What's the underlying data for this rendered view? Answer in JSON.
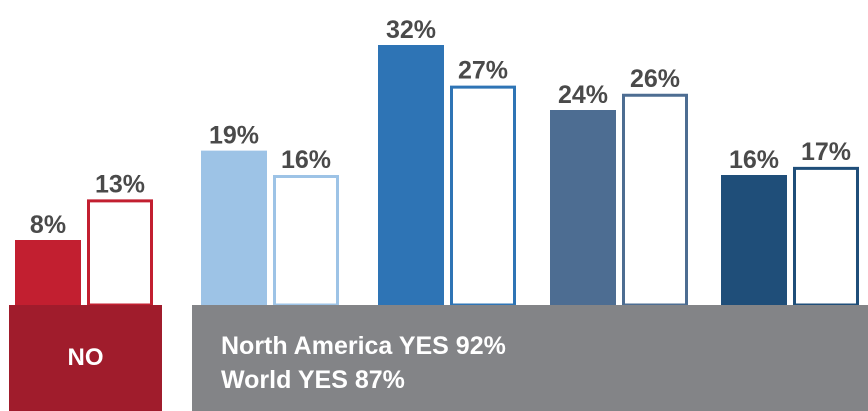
{
  "chart_data": {
    "type": "bar",
    "ylim": [
      0,
      35
    ],
    "groups": [
      {
        "label": "NO",
        "region": "no",
        "filled": 8,
        "outline": 13,
        "color": "#c21f30"
      },
      {
        "region": "yes",
        "filled": 19,
        "outline": 16,
        "color": "#9dc3e6"
      },
      {
        "region": "yes",
        "filled": 32,
        "outline": 27,
        "color": "#2e74b5"
      },
      {
        "region": "yes",
        "filled": 24,
        "outline": 26,
        "color": "#4d6d92"
      },
      {
        "region": "yes",
        "filled": 16,
        "outline": 17,
        "color": "#1f4e79"
      }
    ],
    "value_labels": {
      "no_filled": "8%",
      "no_outline": "13%",
      "g1_filled": "19%",
      "g1_outline": "16%",
      "g2_filled": "32%",
      "g2_outline": "27%",
      "g3_filled": "24%",
      "g3_outline": "26%",
      "g4_filled": "16%",
      "g4_outline": "17%"
    },
    "bands": {
      "no": {
        "label": "NO",
        "color": "#a01c2c"
      },
      "yes": {
        "lines": [
          "North America YES 92%",
          "World YES 87%"
        ],
        "color": "#838487"
      }
    }
  }
}
